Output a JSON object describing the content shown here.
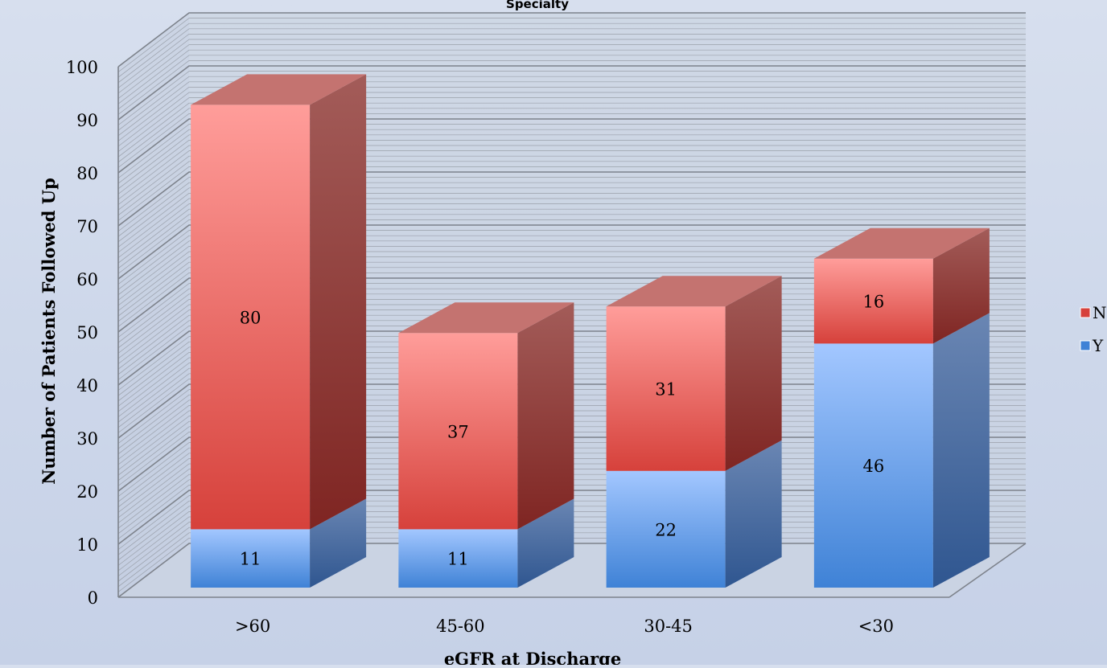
{
  "chart_data": {
    "type": "bar",
    "stacked": true,
    "three_d": true,
    "title": "Specialty",
    "xlabel": "eGFR at Discharge",
    "ylabel": "Number of Patients Followed Up",
    "categories": [
      ">60",
      "45-60",
      "30-45",
      "<30"
    ],
    "series": [
      {
        "name": "Y",
        "values": [
          11,
          11,
          22,
          46
        ]
      },
      {
        "name": "N",
        "values": [
          80,
          37,
          31,
          16
        ]
      }
    ],
    "ylim": [
      0,
      100
    ],
    "yticks": [
      "0",
      "10",
      "20",
      "30",
      "40",
      "50",
      "60",
      "70",
      "80",
      "90",
      "100"
    ],
    "grid": true,
    "legend": "right",
    "colors": {
      "Y": {
        "front_top": "#a3c7ff",
        "front_bottom": "#3f82d6",
        "side": "#3f66a3",
        "top": "#7ea4dd"
      },
      "N": {
        "front_top": "#ff9d9a",
        "front_bottom": "#d6413b",
        "side": "#8e2c2a",
        "top": "#c47370"
      },
      "wall": "#c8d0de",
      "gridline": "#8a8f98"
    }
  }
}
